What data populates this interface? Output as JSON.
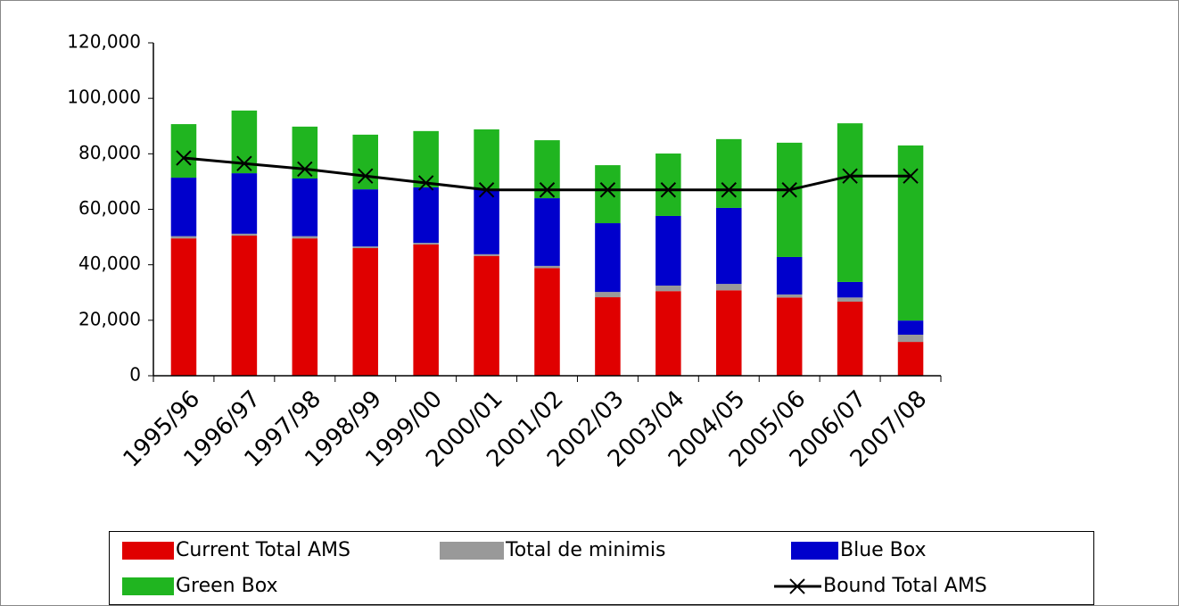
{
  "chart_data": {
    "type": "bar",
    "stacked": true,
    "categories": [
      "1995/96",
      "1996/97",
      "1997/98",
      "1998/99",
      "1999/00",
      "2000/01",
      "2001/02",
      "2002/03",
      "2003/04",
      "2004/05",
      "2005/06",
      "2006/07",
      "2007/08"
    ],
    "series": [
      {
        "name": "Current Total AMS",
        "type": "bar",
        "color": "#e00000",
        "values": [
          49500,
          50500,
          49500,
          46000,
          47300,
          43200,
          38800,
          28300,
          30500,
          30800,
          28200,
          26700,
          12200
        ]
      },
      {
        "name": "Total de minimis",
        "type": "bar",
        "color": "#999999",
        "values": [
          800,
          700,
          800,
          600,
          600,
          600,
          800,
          1900,
          2000,
          2300,
          1100,
          1500,
          2600
        ]
      },
      {
        "name": "Blue Box",
        "type": "bar",
        "color": "#0000cc",
        "values": [
          21100,
          21800,
          20800,
          20600,
          20000,
          23400,
          24400,
          24800,
          25100,
          27400,
          13500,
          5600,
          5100
        ]
      },
      {
        "name": "Green Box",
        "type": "bar",
        "color": "#20b520",
        "values": [
          19300,
          22600,
          18700,
          19700,
          20300,
          21600,
          20900,
          20900,
          22500,
          24800,
          41200,
          57200,
          63100
        ]
      },
      {
        "name": "Bound Total AMS",
        "type": "line",
        "color": "#000000",
        "marker": "x",
        "values": [
          78500,
          76500,
          74500,
          72000,
          69500,
          67000,
          67000,
          67000,
          67000,
          67000,
          67000,
          72000,
          72000
        ]
      }
    ],
    "ylim": [
      0,
      120000
    ],
    "yticks": [
      0,
      {
        "value": 20000,
        "label": "20,000"
      },
      {
        "value": 40000,
        "label": "40,000"
      },
      {
        "value": 60000,
        "label": "60,000"
      },
      {
        "value": 80000,
        "label": "80,000"
      },
      {
        "value": 100000,
        "label": "100,000"
      },
      {
        "value": 120000,
        "label": "120,000"
      }
    ],
    "grid": false,
    "legend": "bottom"
  }
}
